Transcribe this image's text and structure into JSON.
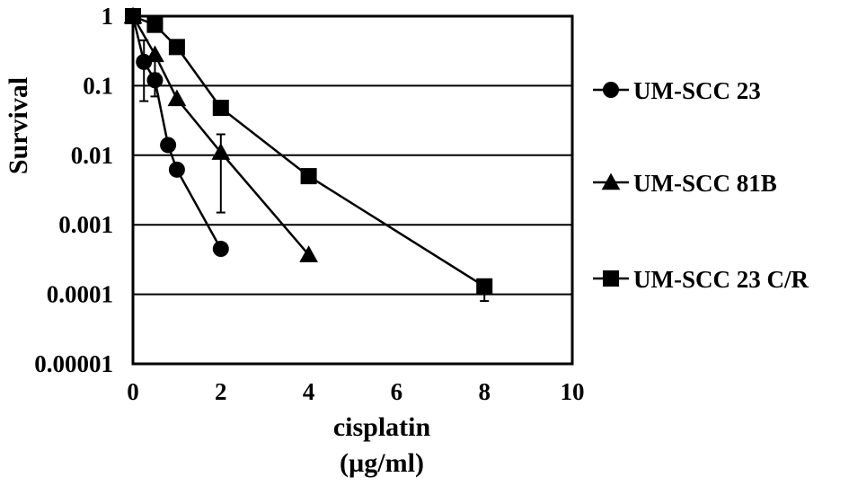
{
  "chart_data": {
    "type": "line",
    "title": "",
    "xlabel": "cisplatin",
    "xlabel_unit": "(µg/ml)",
    "ylabel": "Survival",
    "xlim": [
      0,
      10
    ],
    "ylim": [
      1e-05,
      1
    ],
    "yscale": "log",
    "x_ticks": [
      0,
      2,
      4,
      6,
      8,
      10
    ],
    "x_tick_labels": [
      "0",
      "2",
      "4",
      "6",
      "8",
      "10"
    ],
    "y_ticks": [
      1,
      0.1,
      0.01,
      0.001,
      0.0001,
      1e-05
    ],
    "y_tick_labels": [
      "1",
      "0.1",
      "0.01",
      "0.001",
      "0.0001",
      "0.00001"
    ],
    "grid": "horizontal",
    "legend_position": "right",
    "series": [
      {
        "name": "UM-SCC 23",
        "marker": "circle",
        "color": "#000000",
        "x": [
          0,
          0.25,
          0.5,
          0.8,
          1,
          2
        ],
        "y": [
          1,
          0.22,
          0.12,
          0.014,
          0.0062,
          0.00045
        ],
        "err_low": [
          1,
          0.06,
          0.07,
          0.014,
          0.0062,
          0.00045
        ],
        "err_high": [
          1,
          0.45,
          0.15,
          0.014,
          0.0062,
          0.00045
        ]
      },
      {
        "name": "UM-SCC 81B",
        "marker": "triangle",
        "color": "#000000",
        "x": [
          0,
          0.5,
          1,
          2,
          4
        ],
        "y": [
          1,
          0.28,
          0.065,
          0.011,
          0.00037
        ],
        "err_low": [
          1,
          0.1,
          0.065,
          0.0015,
          0.00037
        ],
        "err_high": [
          1,
          0.28,
          0.065,
          0.02,
          0.00037
        ]
      },
      {
        "name": "UM-SCC 23 C/R",
        "marker": "square",
        "color": "#000000",
        "x": [
          0,
          0.5,
          1,
          2,
          4,
          8
        ],
        "y": [
          1,
          0.75,
          0.36,
          0.048,
          0.005,
          0.00013
        ],
        "err_low": [
          1,
          0.75,
          0.36,
          0.048,
          0.005,
          8e-05
        ],
        "err_high": [
          1,
          0.75,
          0.36,
          0.048,
          0.005,
          0.00016
        ]
      }
    ]
  }
}
